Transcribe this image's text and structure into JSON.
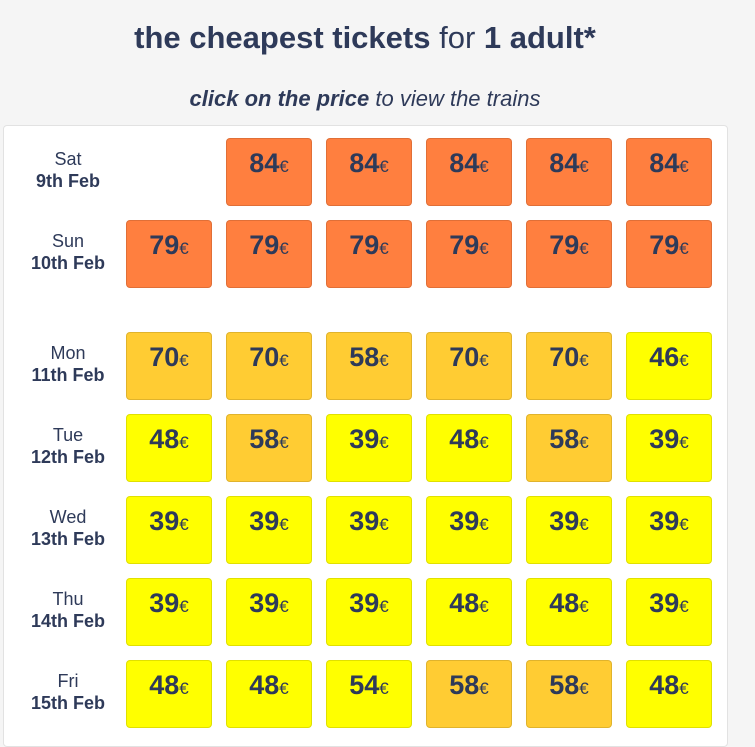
{
  "header": {
    "title_bold1": "the cheapest tickets",
    "title_mid": " for ",
    "title_bold2": "1 adult*",
    "subtitle_bold": "click on the price",
    "subtitle_rest": " to view the trains"
  },
  "currency": "€",
  "colors": {
    "high": "#ff7f3f",
    "mid": "#ffcc33",
    "low": "#ffff00",
    "text": "#2e3a59"
  },
  "rows": [
    {
      "day": "Sat",
      "date": "9th Feb",
      "cells": [
        null,
        {
          "price": "84",
          "tier": "high"
        },
        {
          "price": "84",
          "tier": "high"
        },
        {
          "price": "84",
          "tier": "high"
        },
        {
          "price": "84",
          "tier": "high"
        },
        {
          "price": "84",
          "tier": "high"
        }
      ]
    },
    {
      "day": "Sun",
      "date": "10th Feb",
      "cells": [
        {
          "price": "79",
          "tier": "high"
        },
        {
          "price": "79",
          "tier": "high"
        },
        {
          "price": "79",
          "tier": "high"
        },
        {
          "price": "79",
          "tier": "high"
        },
        {
          "price": "79",
          "tier": "high"
        },
        {
          "price": "79",
          "tier": "high"
        }
      ]
    },
    {
      "day": "Mon",
      "date": "11th Feb",
      "cells": [
        {
          "price": "70",
          "tier": "mid"
        },
        {
          "price": "70",
          "tier": "mid"
        },
        {
          "price": "58",
          "tier": "mid"
        },
        {
          "price": "70",
          "tier": "mid"
        },
        {
          "price": "70",
          "tier": "mid"
        },
        {
          "price": "46",
          "tier": "low"
        }
      ]
    },
    {
      "day": "Tue",
      "date": "12th Feb",
      "cells": [
        {
          "price": "48",
          "tier": "low"
        },
        {
          "price": "58",
          "tier": "mid"
        },
        {
          "price": "39",
          "tier": "low"
        },
        {
          "price": "48",
          "tier": "low"
        },
        {
          "price": "58",
          "tier": "mid"
        },
        {
          "price": "39",
          "tier": "low"
        }
      ]
    },
    {
      "day": "Wed",
      "date": "13th Feb",
      "cells": [
        {
          "price": "39",
          "tier": "low"
        },
        {
          "price": "39",
          "tier": "low"
        },
        {
          "price": "39",
          "tier": "low"
        },
        {
          "price": "39",
          "tier": "low"
        },
        {
          "price": "39",
          "tier": "low"
        },
        {
          "price": "39",
          "tier": "low"
        }
      ]
    },
    {
      "day": "Thu",
      "date": "14th Feb",
      "cells": [
        {
          "price": "39",
          "tier": "low"
        },
        {
          "price": "39",
          "tier": "low"
        },
        {
          "price": "39",
          "tier": "low"
        },
        {
          "price": "48",
          "tier": "low"
        },
        {
          "price": "48",
          "tier": "low"
        },
        {
          "price": "39",
          "tier": "low"
        }
      ]
    },
    {
      "day": "Fri",
      "date": "15th Feb",
      "cells": [
        {
          "price": "48",
          "tier": "low"
        },
        {
          "price": "48",
          "tier": "low"
        },
        {
          "price": "54",
          "tier": "low"
        },
        {
          "price": "58",
          "tier": "mid"
        },
        {
          "price": "58",
          "tier": "mid"
        },
        {
          "price": "48",
          "tier": "low"
        }
      ]
    }
  ]
}
